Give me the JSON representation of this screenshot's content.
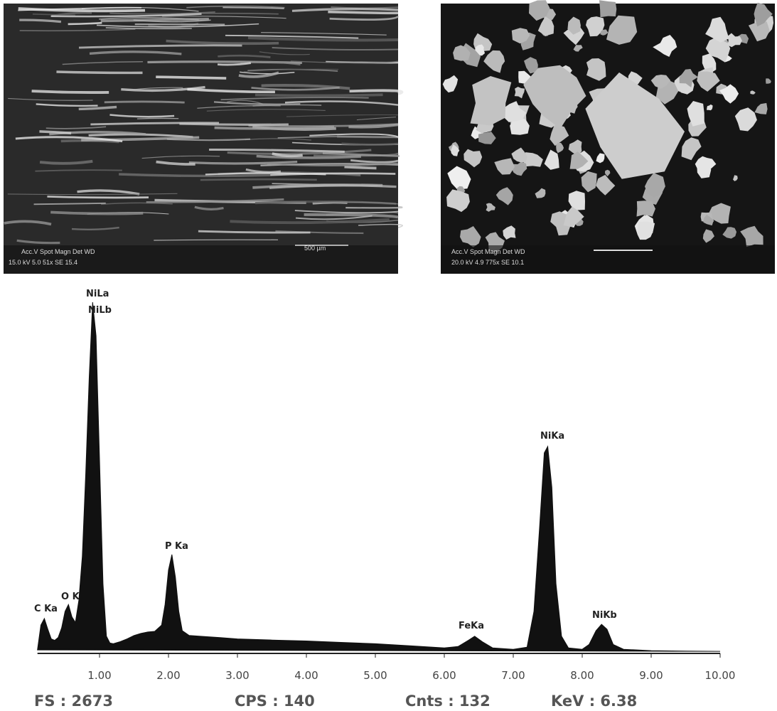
{
  "sem_images": [
    {
      "header": "Acc.V  Spot Magn    Det  WD",
      "params": "15.0 kV 5.0  51x    SE   15.4",
      "scale_bar": "500 µm"
    },
    {
      "header": "Acc.V  Spot Magn   Det  WD",
      "params": "20.0 kV 4.9  775x   SE  10.1"
    }
  ],
  "chart_data": {
    "type": "area",
    "color": "#111111",
    "x": [
      0.1,
      0.15,
      0.2,
      0.25,
      0.3,
      0.35,
      0.4,
      0.45,
      0.5,
      0.55,
      0.6,
      0.65,
      0.7,
      0.75,
      0.8,
      0.85,
      0.9,
      0.95,
      1,
      1.05,
      1.1,
      1.15,
      1.2,
      1.3,
      1.4,
      1.5,
      1.6,
      1.7,
      1.8,
      1.9,
      1.95,
      2,
      2.05,
      2.1,
      2.15,
      2.2,
      2.3,
      2.5,
      2.75,
      3,
      3.5,
      4,
      4.5,
      5,
      5.5,
      6,
      6.2,
      6.35,
      6.44,
      6.55,
      6.7,
      7,
      7.2,
      7.3,
      7.38,
      7.45,
      7.5,
      7.56,
      7.62,
      7.7,
      7.8,
      8,
      8.1,
      8.2,
      8.28,
      8.36,
      8.45,
      8.6,
      9,
      9.5,
      10
    ],
    "values": [
      20,
      200,
      248,
      170,
      100,
      90,
      110,
      180,
      300,
      350,
      260,
      220,
      380,
      700,
      1300,
      2000,
      2544,
      2300,
      1400,
      500,
      120,
      70,
      65,
      80,
      100,
      125,
      140,
      150,
      155,
      200,
      350,
      600,
      712,
      550,
      300,
      160,
      125,
      118,
      110,
      100,
      92,
      85,
      75,
      65,
      50,
      35,
      45,
      90,
      119,
      80,
      35,
      25,
      40,
      300,
      900,
      1450,
      1497,
      1200,
      500,
      120,
      35,
      25,
      60,
      160,
      206,
      170,
      60,
      25,
      15,
      12,
      10
    ],
    "xlim": [
      0.1,
      10
    ],
    "ylim": [
      0,
      2673
    ],
    "xticks": [
      {
        "value": 1,
        "label": "1.00"
      },
      {
        "value": 2,
        "label": "2.00"
      },
      {
        "value": 3,
        "label": "3.00"
      },
      {
        "value": 4,
        "label": "4.00"
      },
      {
        "value": 5,
        "label": "5.00"
      },
      {
        "value": 6,
        "label": "6.00"
      },
      {
        "value": 7,
        "label": "7.00"
      },
      {
        "value": 8,
        "label": "8.00"
      },
      {
        "value": 9,
        "label": "9.00"
      },
      {
        "value": 10,
        "label": "10.00"
      }
    ],
    "peak_labels": [
      "C Ka",
      "O K",
      "NiLa",
      "NiLb",
      "P Ka",
      "FeKa",
      "NiKa",
      "NiKb"
    ],
    "footer": [
      "FS : 2673",
      "CPS : 140",
      "Cnts : 132",
      "KeV : 6.38"
    ]
  }
}
